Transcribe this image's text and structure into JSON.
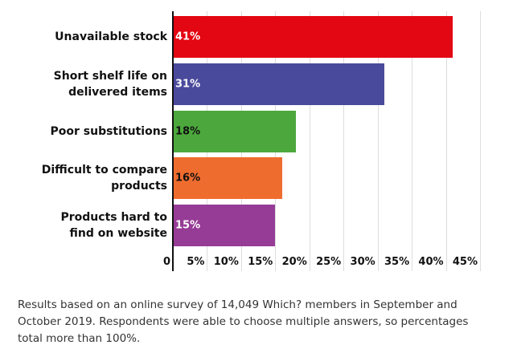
{
  "chart_data": {
    "type": "bar",
    "orientation": "horizontal",
    "categories": [
      "Unavailable stock",
      "Short shelf life on delivered items",
      "Poor substitutions",
      "Difficult to compare products",
      "Products hard to find on website"
    ],
    "values": [
      41,
      31,
      18,
      16,
      15
    ],
    "value_labels": [
      "41%",
      "31%",
      "18%",
      "16%",
      "15%"
    ],
    "colors": [
      "#e30613",
      "#4a4a9c",
      "#4ca83c",
      "#ef6c2f",
      "#963c96"
    ],
    "value_label_colors": [
      "#ffffff",
      "#ffffff",
      "#111111",
      "#111111",
      "#ffffff"
    ],
    "xlim": [
      0,
      45
    ],
    "xticks": [
      0,
      {
        "value": 5,
        "label": "5%"
      },
      {
        "value": 10,
        "label": "10%"
      },
      {
        "value": 15,
        "label": "15%"
      },
      {
        "value": 20,
        "label": "20%"
      },
      {
        "value": 25,
        "label": "25%"
      },
      {
        "value": 30,
        "label": "30%"
      },
      {
        "value": 35,
        "label": "35%"
      },
      {
        "value": 40,
        "label": "40%"
      },
      {
        "value": 45,
        "label": "45%"
      }
    ],
    "grid": true,
    "note": "Results based on an online survey of 14,049 Which? members in September and October 2019. Respondents were able to choose multiple answers, so percentages total more than 100%."
  }
}
